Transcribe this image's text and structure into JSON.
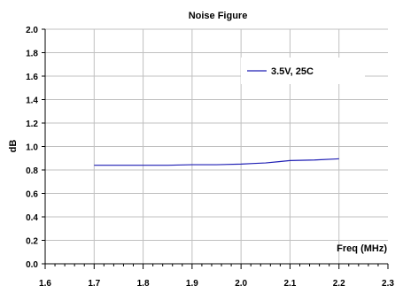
{
  "chart_data": {
    "type": "line",
    "title": "Noise Figure",
    "xlabel": "Freq (MHz)",
    "ylabel": "dB",
    "x_ticks": [
      "1.6",
      "1.7",
      "1.8",
      "1.9",
      "2.0",
      "2.1",
      "2.2",
      "2.3"
    ],
    "y_ticks": [
      "0.0",
      "0.2",
      "0.4",
      "0.6",
      "0.8",
      "1.0",
      "1.2",
      "1.4",
      "1.6",
      "1.8",
      "2.0"
    ],
    "xlim": [
      1.6,
      2.3
    ],
    "ylim": [
      0.0,
      2.0
    ],
    "grid": true,
    "legend_position": "top-right",
    "series": [
      {
        "name": "3.5V, 25C",
        "color": "#1f1fb4",
        "x": [
          1.7,
          1.75,
          1.8,
          1.85,
          1.9,
          1.95,
          2.0,
          2.025,
          2.05,
          2.075,
          2.1,
          2.15,
          2.2
        ],
        "y": [
          0.84,
          0.84,
          0.84,
          0.84,
          0.845,
          0.845,
          0.85,
          0.855,
          0.86,
          0.87,
          0.88,
          0.885,
          0.895
        ]
      }
    ]
  }
}
